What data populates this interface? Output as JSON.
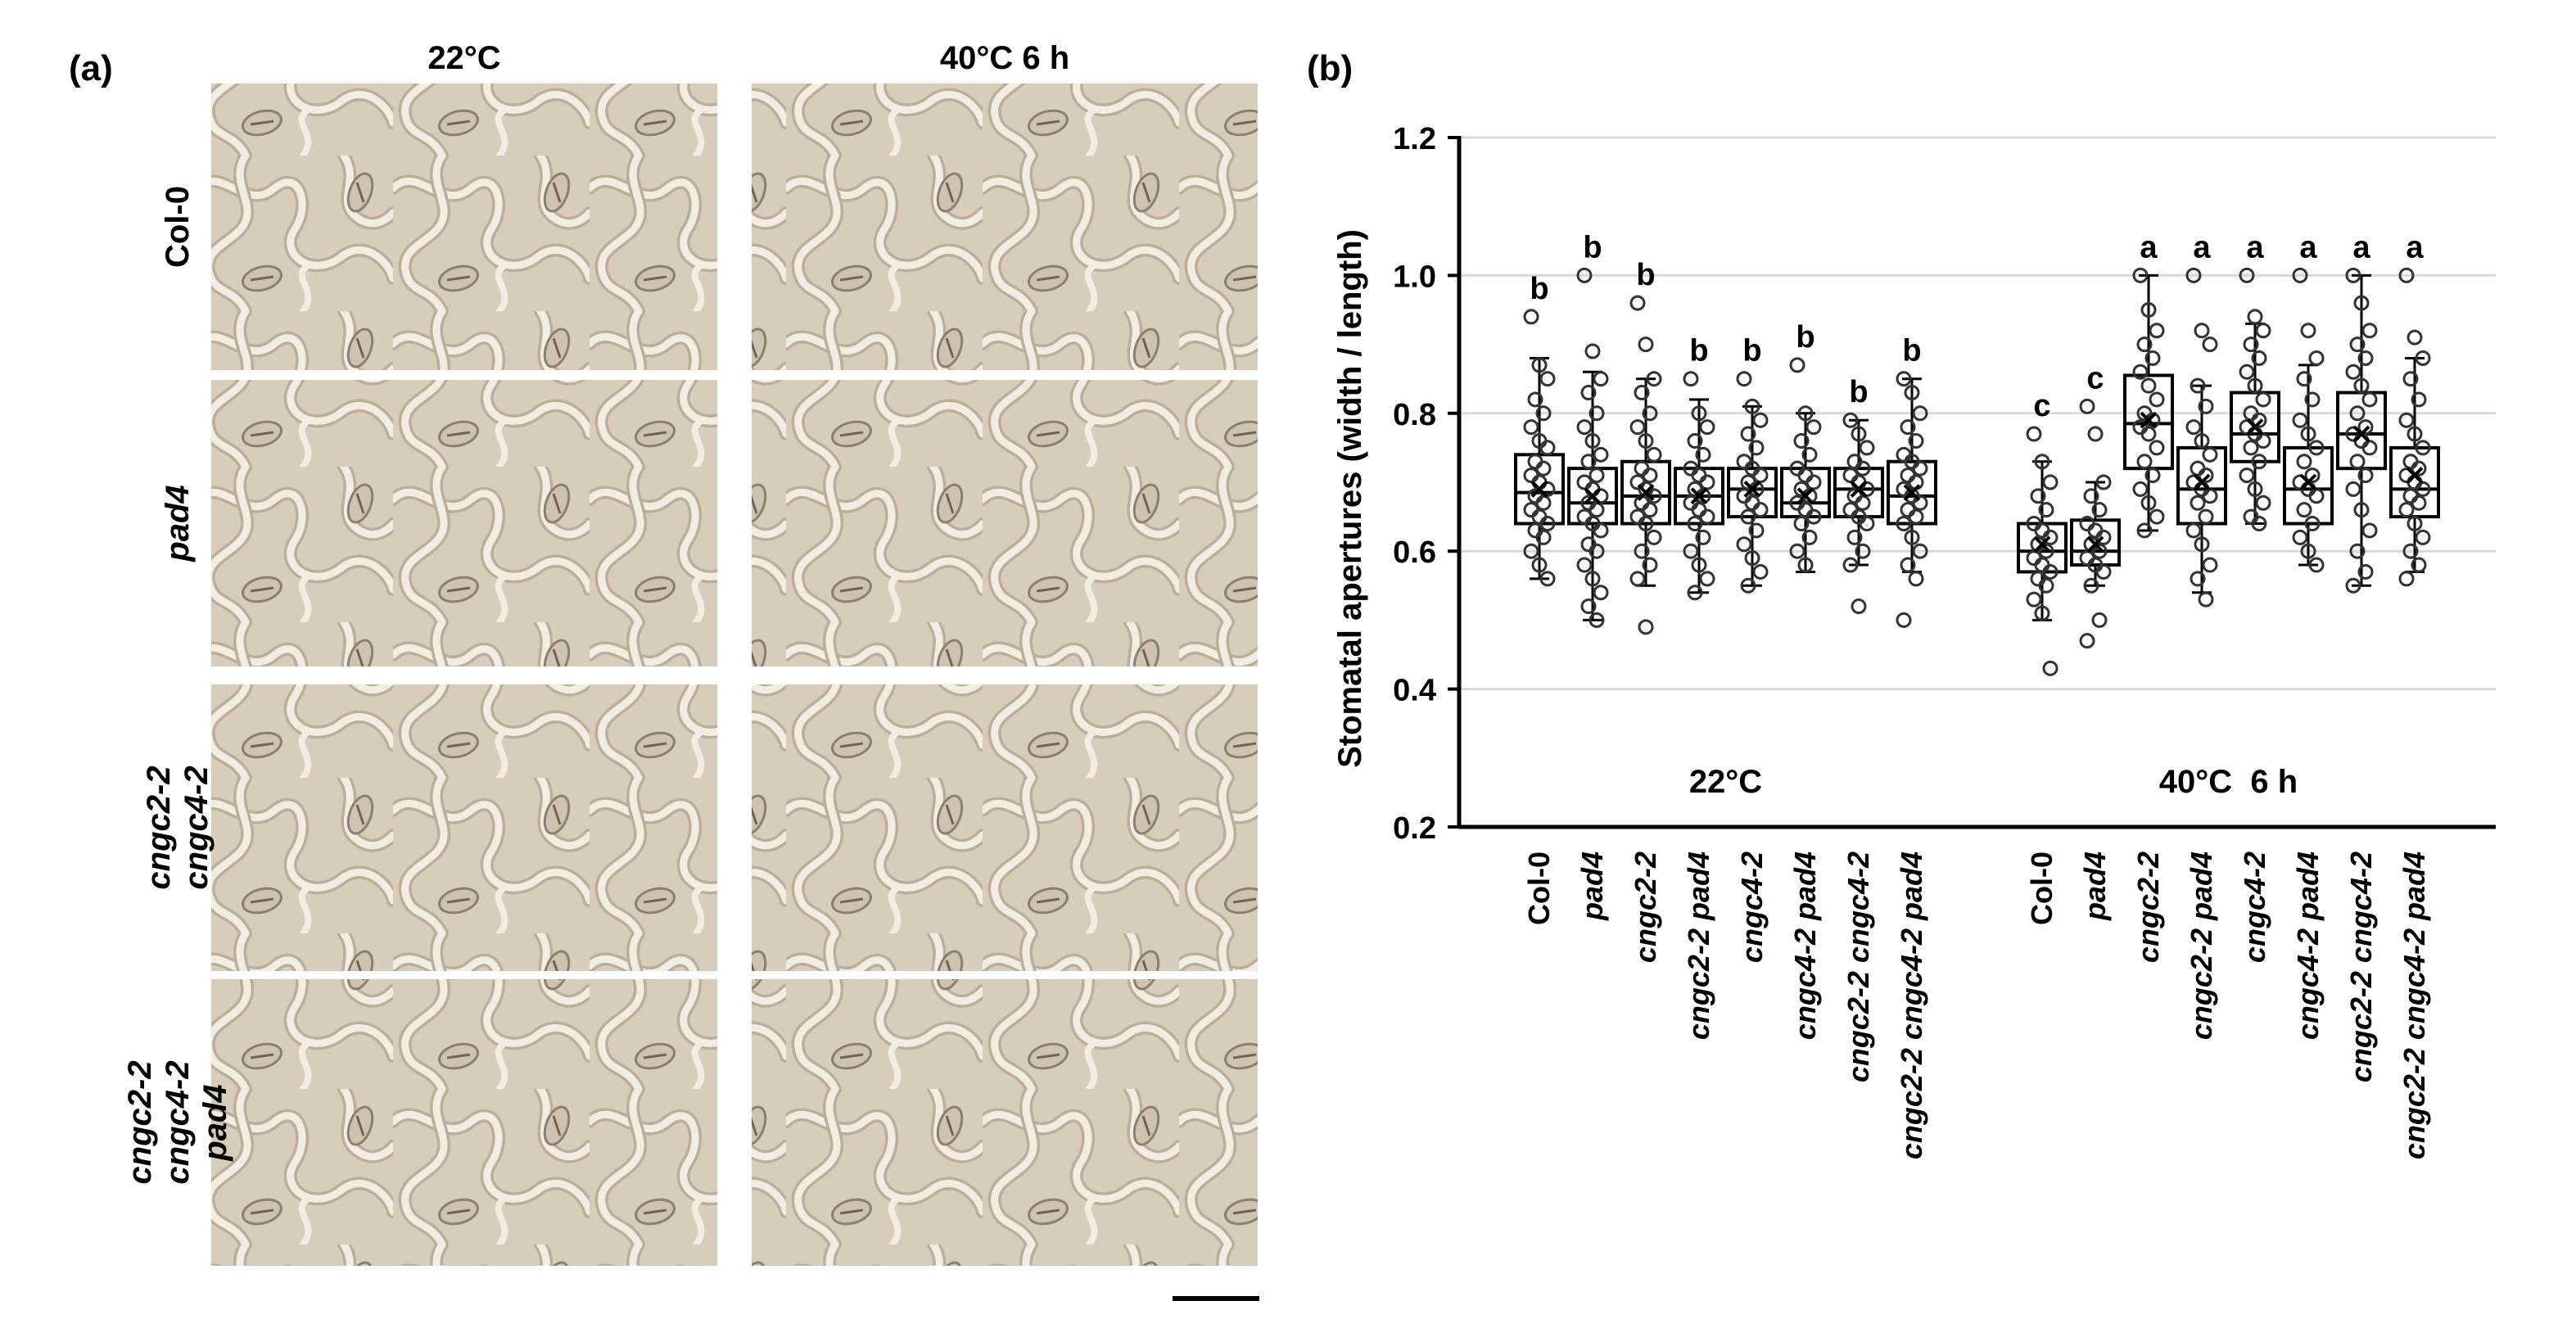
{
  "panel_a": {
    "label": "(a)",
    "columns": [
      "22°C",
      "40°C  6 h"
    ],
    "rows": [
      {
        "lines": [
          "Col-0"
        ],
        "italic": false
      },
      {
        "lines": [
          "pad4"
        ],
        "italic": true
      },
      {
        "lines": [
          "cngc2-2",
          "cngc4-2"
        ],
        "italic": true
      },
      {
        "lines": [
          "cngc2-2",
          "cngc4-2",
          "pad4"
        ],
        "italic": true
      }
    ],
    "colors": {
      "background": "#d8ccbb",
      "cell_wall": "#f2ede2",
      "cell_shadow": "#bcae98",
      "stoma": "#8b7f70"
    }
  },
  "panel_b": {
    "label": "(b)"
  },
  "chart_data": {
    "type": "box",
    "ylabel": "Stomatal apertures (width / length)",
    "ylim": [
      0.2,
      1.2
    ],
    "yticks": [
      "0.2",
      "0.4",
      "0.6",
      "0.8",
      "1.0",
      "1.2"
    ],
    "grid": true,
    "groups": [
      "22°C",
      "40°C  6 h"
    ],
    "categories": [
      "Col-0",
      "pad4",
      "cngc2-2",
      "cngc2-2 pad4",
      "cngc4-2",
      "cngc4-2 pad4",
      "cngc2-2 cngc4-2",
      "cngc2-2 cngc4-2 pad4"
    ],
    "letters_22C": [
      "b",
      "b",
      "b",
      "b",
      "b",
      "b",
      "b",
      "b"
    ],
    "letters_40C": [
      "c",
      "c",
      "a",
      "a",
      "a",
      "a",
      "a",
      "a"
    ],
    "series": [
      {
        "group": "22°C",
        "category": "Col-0",
        "min": 0.56,
        "q1": 0.64,
        "median": 0.685,
        "q3": 0.74,
        "max": 0.88,
        "mean": 0.69,
        "letter": "b",
        "points": [
          0.94,
          0.87,
          0.85,
          0.82,
          0.8,
          0.78,
          0.76,
          0.75,
          0.73,
          0.72,
          0.71,
          0.7,
          0.69,
          0.68,
          0.67,
          0.66,
          0.65,
          0.64,
          0.63,
          0.62,
          0.6,
          0.58,
          0.56
        ]
      },
      {
        "group": "22°C",
        "category": "pad4",
        "min": 0.5,
        "q1": 0.64,
        "median": 0.67,
        "q3": 0.72,
        "max": 0.86,
        "mean": 0.68,
        "letter": "b",
        "points": [
          1.0,
          0.89,
          0.85,
          0.83,
          0.8,
          0.78,
          0.76,
          0.74,
          0.73,
          0.71,
          0.7,
          0.69,
          0.68,
          0.67,
          0.66,
          0.65,
          0.64,
          0.63,
          0.61,
          0.6,
          0.58,
          0.56,
          0.54,
          0.52,
          0.5
        ]
      },
      {
        "group": "22°C",
        "category": "cngc2-2",
        "min": 0.55,
        "q1": 0.64,
        "median": 0.68,
        "q3": 0.73,
        "max": 0.85,
        "mean": 0.685,
        "letter": "b",
        "points": [
          0.96,
          0.9,
          0.85,
          0.83,
          0.8,
          0.78,
          0.76,
          0.74,
          0.72,
          0.71,
          0.7,
          0.69,
          0.68,
          0.67,
          0.66,
          0.65,
          0.64,
          0.62,
          0.6,
          0.58,
          0.56,
          0.49
        ]
      },
      {
        "group": "22°C",
        "category": "cngc2-2 pad4",
        "min": 0.54,
        "q1": 0.64,
        "median": 0.68,
        "q3": 0.72,
        "max": 0.82,
        "mean": 0.68,
        "letter": "b",
        "points": [
          0.85,
          0.8,
          0.78,
          0.76,
          0.74,
          0.72,
          0.71,
          0.7,
          0.69,
          0.68,
          0.67,
          0.66,
          0.65,
          0.64,
          0.62,
          0.6,
          0.58,
          0.56,
          0.54
        ]
      },
      {
        "group": "22°C",
        "category": "cngc4-2",
        "min": 0.55,
        "q1": 0.65,
        "median": 0.69,
        "q3": 0.72,
        "max": 0.81,
        "mean": 0.69,
        "letter": "b",
        "points": [
          0.85,
          0.81,
          0.79,
          0.77,
          0.75,
          0.73,
          0.72,
          0.71,
          0.7,
          0.69,
          0.68,
          0.67,
          0.66,
          0.65,
          0.63,
          0.61,
          0.59,
          0.57,
          0.55
        ]
      },
      {
        "group": "22°C",
        "category": "cngc4-2 pad4",
        "min": 0.57,
        "q1": 0.65,
        "median": 0.67,
        "q3": 0.72,
        "max": 0.8,
        "mean": 0.68,
        "letter": "b",
        "points": [
          0.87,
          0.8,
          0.78,
          0.76,
          0.74,
          0.72,
          0.71,
          0.7,
          0.69,
          0.68,
          0.67,
          0.66,
          0.65,
          0.64,
          0.62,
          0.6,
          0.58
        ]
      },
      {
        "group": "22°C",
        "category": "cngc2-2 cngc4-2",
        "min": 0.58,
        "q1": 0.65,
        "median": 0.69,
        "q3": 0.72,
        "max": 0.79,
        "mean": 0.69,
        "letter": "b",
        "points": [
          0.79,
          0.77,
          0.75,
          0.73,
          0.72,
          0.71,
          0.7,
          0.69,
          0.68,
          0.67,
          0.66,
          0.65,
          0.64,
          0.62,
          0.6,
          0.58,
          0.52
        ]
      },
      {
        "group": "22°C",
        "category": "cngc2-2 cngc4-2 pad4",
        "min": 0.57,
        "q1": 0.64,
        "median": 0.68,
        "q3": 0.73,
        "max": 0.85,
        "mean": 0.685,
        "letter": "b",
        "points": [
          0.85,
          0.83,
          0.8,
          0.78,
          0.76,
          0.74,
          0.73,
          0.72,
          0.71,
          0.7,
          0.69,
          0.68,
          0.67,
          0.66,
          0.65,
          0.64,
          0.62,
          0.6,
          0.58,
          0.56,
          0.5
        ]
      },
      {
        "group": "40°C  6 h",
        "category": "Col-0",
        "min": 0.5,
        "q1": 0.57,
        "median": 0.6,
        "q3": 0.64,
        "max": 0.73,
        "mean": 0.61,
        "letter": "c",
        "points": [
          0.77,
          0.73,
          0.7,
          0.68,
          0.66,
          0.64,
          0.63,
          0.62,
          0.61,
          0.6,
          0.59,
          0.58,
          0.57,
          0.56,
          0.55,
          0.53,
          0.51,
          0.43
        ]
      },
      {
        "group": "40°C  6 h",
        "category": "pad4",
        "min": 0.55,
        "q1": 0.58,
        "median": 0.6,
        "q3": 0.645,
        "max": 0.7,
        "mean": 0.61,
        "letter": "c",
        "points": [
          0.81,
          0.77,
          0.7,
          0.68,
          0.66,
          0.64,
          0.63,
          0.62,
          0.61,
          0.6,
          0.59,
          0.58,
          0.57,
          0.55,
          0.5,
          0.47
        ]
      },
      {
        "group": "40°C  6 h",
        "category": "cngc2-2",
        "min": 0.63,
        "q1": 0.72,
        "median": 0.785,
        "q3": 0.855,
        "max": 1.0,
        "mean": 0.79,
        "letter": "a",
        "points": [
          1.0,
          0.95,
          0.92,
          0.9,
          0.88,
          0.86,
          0.84,
          0.82,
          0.8,
          0.79,
          0.78,
          0.77,
          0.75,
          0.73,
          0.71,
          0.69,
          0.67,
          0.65,
          0.63
        ]
      },
      {
        "group": "40°C  6 h",
        "category": "cngc2-2 pad4",
        "min": 0.54,
        "q1": 0.64,
        "median": 0.69,
        "q3": 0.75,
        "max": 0.84,
        "mean": 0.7,
        "letter": "a",
        "points": [
          1.0,
          0.92,
          0.9,
          0.84,
          0.81,
          0.78,
          0.76,
          0.74,
          0.72,
          0.71,
          0.7,
          0.69,
          0.68,
          0.67,
          0.65,
          0.63,
          0.61,
          0.58,
          0.56,
          0.53
        ]
      },
      {
        "group": "40°C  6 h",
        "category": "cngc4-2",
        "min": 0.64,
        "q1": 0.73,
        "median": 0.77,
        "q3": 0.83,
        "max": 0.93,
        "mean": 0.78,
        "letter": "a",
        "points": [
          1.0,
          0.94,
          0.92,
          0.9,
          0.88,
          0.86,
          0.84,
          0.82,
          0.8,
          0.79,
          0.78,
          0.77,
          0.76,
          0.75,
          0.73,
          0.71,
          0.69,
          0.67,
          0.65,
          0.64
        ]
      },
      {
        "group": "40°C  6 h",
        "category": "cngc4-2 pad4",
        "min": 0.58,
        "q1": 0.64,
        "median": 0.69,
        "q3": 0.75,
        "max": 0.87,
        "mean": 0.7,
        "letter": "a",
        "points": [
          1.0,
          0.92,
          0.88,
          0.85,
          0.82,
          0.79,
          0.77,
          0.75,
          0.73,
          0.71,
          0.7,
          0.69,
          0.68,
          0.66,
          0.64,
          0.62,
          0.6,
          0.58
        ]
      },
      {
        "group": "40°C  6 h",
        "category": "cngc2-2 cngc4-2",
        "min": 0.55,
        "q1": 0.72,
        "median": 0.77,
        "q3": 0.83,
        "max": 1.0,
        "mean": 0.77,
        "letter": "a",
        "points": [
          1.0,
          0.96,
          0.92,
          0.9,
          0.88,
          0.86,
          0.84,
          0.82,
          0.8,
          0.78,
          0.77,
          0.76,
          0.75,
          0.73,
          0.71,
          0.69,
          0.66,
          0.63,
          0.6,
          0.57,
          0.55
        ]
      },
      {
        "group": "40°C  6 h",
        "category": "cngc2-2 cngc4-2 pad4",
        "min": 0.57,
        "q1": 0.65,
        "median": 0.69,
        "q3": 0.75,
        "max": 0.88,
        "mean": 0.71,
        "letter": "a",
        "points": [
          1.0,
          0.91,
          0.88,
          0.85,
          0.82,
          0.79,
          0.77,
          0.75,
          0.73,
          0.72,
          0.71,
          0.7,
          0.69,
          0.68,
          0.67,
          0.66,
          0.64,
          0.62,
          0.6,
          0.58,
          0.56
        ]
      }
    ]
  }
}
